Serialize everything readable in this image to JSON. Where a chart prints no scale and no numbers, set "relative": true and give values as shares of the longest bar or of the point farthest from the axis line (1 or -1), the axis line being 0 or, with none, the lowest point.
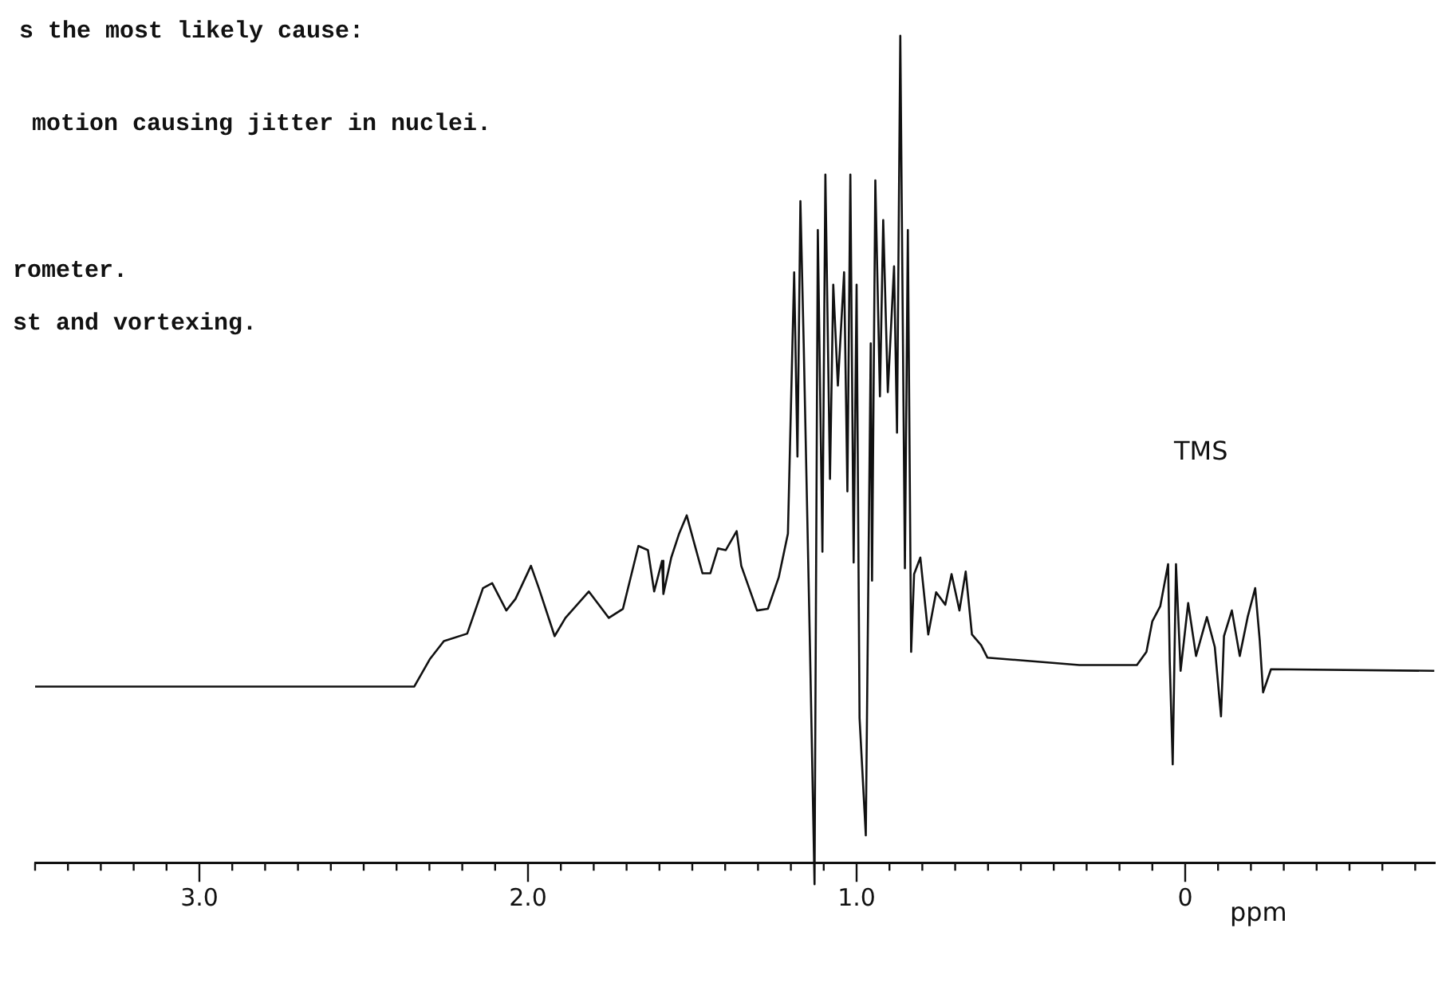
{
  "chart_data": {
    "type": "line",
    "relative": true,
    "xlabel": "ppm",
    "xlim": [
      3.5,
      -0.76
    ],
    "xticks": [
      {
        "value": 3.5,
        "label": null
      },
      {
        "value": 3.4,
        "label": null
      },
      {
        "value": 3.3,
        "label": null
      },
      {
        "value": 3.2,
        "label": null
      },
      {
        "value": 3.1,
        "label": null
      },
      {
        "value": 3,
        "label": "3.0"
      },
      {
        "value": 2.9,
        "label": null
      },
      {
        "value": 2.8,
        "label": null
      },
      {
        "value": 2.7,
        "label": null
      },
      {
        "value": 2.6,
        "label": null
      },
      {
        "value": 2.5,
        "label": null
      },
      {
        "value": 2.4,
        "label": null
      },
      {
        "value": 2.3,
        "label": null
      },
      {
        "value": 2.2,
        "label": null
      },
      {
        "value": 2.1,
        "label": null
      },
      {
        "value": 2,
        "label": "2.0"
      },
      {
        "value": 1.9,
        "label": null
      },
      {
        "value": 1.8,
        "label": null
      },
      {
        "value": 1.7,
        "label": null
      },
      {
        "value": 1.6,
        "label": null
      },
      {
        "value": 1.5,
        "label": null
      },
      {
        "value": 1.4,
        "label": null
      },
      {
        "value": 1.3,
        "label": null
      },
      {
        "value": 1.2,
        "label": null
      },
      {
        "value": 1.1,
        "label": null
      },
      {
        "value": 1,
        "label": "1.0"
      },
      {
        "value": 0.9,
        "label": null
      },
      {
        "value": 0.8,
        "label": null
      },
      {
        "value": 0.7,
        "label": null
      },
      {
        "value": 0.6,
        "label": null
      },
      {
        "value": 0.5,
        "label": null
      },
      {
        "value": 0.4,
        "label": null
      },
      {
        "value": 0.3,
        "label": null
      },
      {
        "value": 0.2,
        "label": null
      },
      {
        "value": 0.1,
        "label": null
      },
      0,
      {
        "value": -0.1,
        "label": null
      },
      {
        "value": -0.2,
        "label": null
      },
      {
        "value": -0.3,
        "label": null
      },
      {
        "value": -0.4,
        "label": null
      },
      {
        "value": -0.5,
        "label": null
      },
      {
        "value": -0.6,
        "label": null
      },
      {
        "value": -0.7,
        "label": null
      }
    ],
    "grid": false,
    "legend": false,
    "marker": "none",
    "line_style": "solid",
    "annotations": [
      "s the most likely cause:",
      "motion causing jitter in nuclei.",
      "rometer.",
      "st and vortexing.",
      "TMS"
    ],
    "series": [
      {
        "color": "#111111",
        "x": [
          3.5,
          2.36,
          2.346,
          2.299,
          2.256,
          2.185,
          2.137,
          2.109,
          2.066,
          2.038,
          1.991,
          1.967,
          1.919,
          1.886,
          1.815,
          1.754,
          1.711,
          1.664,
          1.635,
          1.616,
          1.592,
          1.588,
          1.564,
          1.54,
          1.517,
          1.498,
          1.469,
          1.445,
          1.422,
          1.398,
          1.365,
          1.351,
          1.327,
          1.303,
          1.27,
          1.237,
          1.209,
          1.19,
          1.18,
          1.171,
          1.161,
          1.142,
          1.128,
          1.118,
          1.104,
          1.095,
          1.081,
          1.071,
          1.057,
          1.038,
          1.028,
          1.019,
          1.009,
          1.0,
          0.991,
          0.972,
          0.957,
          0.953,
          0.943,
          0.929,
          0.919,
          0.905,
          0.886,
          0.877,
          0.867,
          0.853,
          0.844,
          0.834,
          0.825,
          0.806,
          0.782,
          0.758,
          0.73,
          0.711,
          0.687,
          0.668,
          0.649,
          0.621,
          0.602,
          0.322,
          0.147,
          0.118,
          0.1,
          0.076,
          0.052,
          0.047,
          0.038,
          0.028,
          0.014,
          -0.009,
          -0.033,
          -0.066,
          -0.09,
          -0.109,
          -0.118,
          -0.142,
          -0.166,
          -0.19,
          -0.213,
          -0.227,
          -0.237,
          -0.261,
          -0.758
        ],
        "values": [
          0.213,
          0.213,
          0.213,
          0.246,
          0.268,
          0.277,
          0.332,
          0.338,
          0.305,
          0.319,
          0.359,
          0.332,
          0.274,
          0.296,
          0.328,
          0.296,
          0.307,
          0.383,
          0.378,
          0.328,
          0.365,
          0.325,
          0.369,
          0.398,
          0.42,
          0.392,
          0.35,
          0.35,
          0.38,
          0.378,
          0.401,
          0.359,
          0.332,
          0.305,
          0.307,
          0.345,
          0.398,
          0.714,
          0.491,
          0.8,
          0.628,
          0.263,
          -0.026,
          0.765,
          0.376,
          0.832,
          0.464,
          0.699,
          0.577,
          0.714,
          0.449,
          0.832,
          0.363,
          0.699,
          0.175,
          0.033,
          0.628,
          0.341,
          0.825,
          0.564,
          0.777,
          0.569,
          0.721,
          0.52,
          1.0,
          0.356,
          0.765,
          0.255,
          0.349,
          0.369,
          0.276,
          0.327,
          0.312,
          0.349,
          0.305,
          0.352,
          0.276,
          0.263,
          0.248,
          0.239,
          0.239,
          0.255,
          0.292,
          0.31,
          0.361,
          0.243,
          0.119,
          0.361,
          0.232,
          0.314,
          0.25,
          0.297,
          0.261,
          0.177,
          0.274,
          0.305,
          0.25,
          0.297,
          0.332,
          0.268,
          0.206,
          0.234,
          0.232
        ]
      }
    ]
  }
}
